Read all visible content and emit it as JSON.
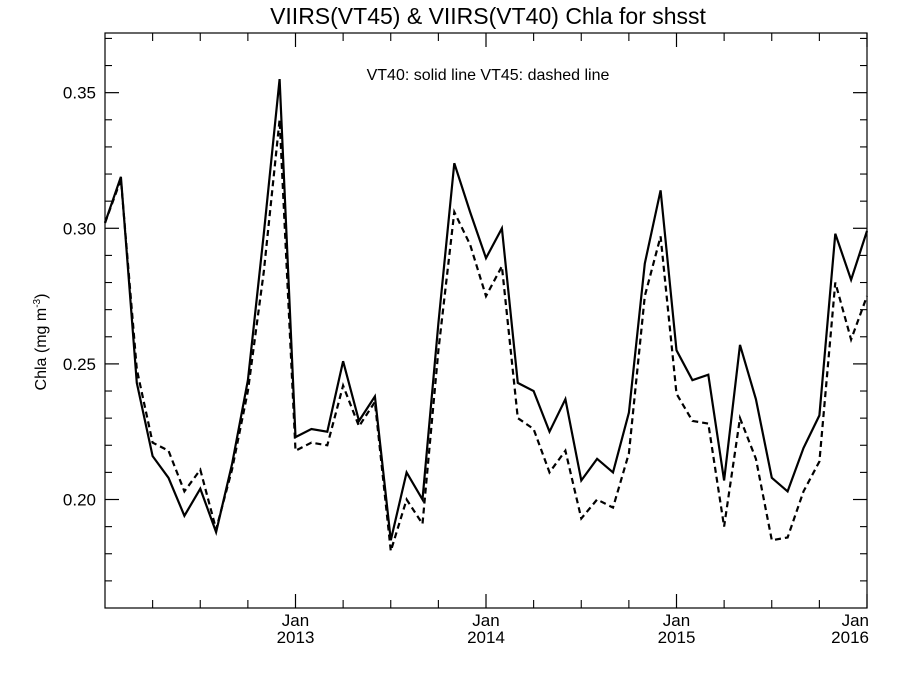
{
  "chart_data": {
    "type": "line",
    "title": "VIIRS(VT45) & VIIRS(VT40)  Chla for shsst",
    "annotation": "VT40: solid line   VT45: dashed line",
    "ylabel": {
      "prefix": "Chla (mg m",
      "superscript": "-3",
      "suffix": ")"
    },
    "xlabel": "",
    "xlim": [
      0,
      48
    ],
    "ylim": [
      0.16,
      0.372
    ],
    "grid": false,
    "legend": "none",
    "x_ticks": [
      {
        "x": 12,
        "month": "Jan",
        "year": "2013"
      },
      {
        "x": 24,
        "month": "Jan",
        "year": "2014"
      },
      {
        "x": 36,
        "month": "Jan",
        "year": "2015"
      },
      {
        "x": 48,
        "month": "Jan",
        "year": "2016"
      }
    ],
    "x_minor_ticks": [
      3,
      6,
      9,
      15,
      18,
      21,
      27,
      30,
      33,
      39,
      42,
      45
    ],
    "y_ticks": [
      0.2,
      0.25,
      0.3,
      0.35
    ],
    "y_tick_labels": [
      "0.20",
      "0.25",
      "0.30",
      "0.35"
    ],
    "y_minor_ticks": [
      0.17,
      0.18,
      0.19,
      0.21,
      0.22,
      0.23,
      0.24,
      0.26,
      0.27,
      0.28,
      0.29,
      0.31,
      0.32,
      0.33,
      0.34,
      0.36,
      0.37
    ],
    "series": [
      {
        "name": "VT40",
        "style": "solid",
        "color": "#000000",
        "x": [
          0,
          1,
          2,
          3,
          4,
          5,
          6,
          7,
          8,
          9,
          10,
          11,
          12,
          13,
          14,
          15,
          16,
          17,
          18,
          19,
          20,
          21,
          22,
          23,
          24,
          25,
          26,
          27,
          28,
          29,
          30,
          31,
          32,
          33,
          34,
          35,
          36,
          37,
          38,
          39,
          40,
          41,
          42,
          43,
          44,
          45,
          46,
          47,
          48
        ],
        "values": [
          0.302,
          0.319,
          0.243,
          0.216,
          0.208,
          0.194,
          0.204,
          0.188,
          0.213,
          0.244,
          0.298,
          0.355,
          0.223,
          0.226,
          0.225,
          0.251,
          0.229,
          0.238,
          0.185,
          0.21,
          0.2,
          0.265,
          0.324,
          0.306,
          0.289,
          0.3,
          0.243,
          0.24,
          0.225,
          0.237,
          0.207,
          0.215,
          0.21,
          0.232,
          0.287,
          0.314,
          0.255,
          0.244,
          0.246,
          0.207,
          0.257,
          0.237,
          0.208,
          0.203,
          0.219,
          0.231,
          0.298,
          0.281,
          0.299
        ]
      },
      {
        "name": "VT45",
        "style": "dashed",
        "color": "#000000",
        "x": [
          0,
          1,
          2,
          3,
          4,
          5,
          6,
          7,
          8,
          9,
          10,
          11,
          12,
          13,
          14,
          15,
          16,
          17,
          18,
          19,
          20,
          21,
          22,
          23,
          24,
          25,
          26,
          27,
          28,
          29,
          30,
          31,
          32,
          33,
          34,
          35,
          36,
          37,
          38,
          39,
          40,
          41,
          42,
          43,
          44,
          45,
          46,
          47,
          48
        ],
        "values": [
          0.302,
          0.318,
          0.248,
          0.221,
          0.218,
          0.203,
          0.211,
          0.189,
          0.211,
          0.24,
          0.284,
          0.34,
          0.218,
          0.221,
          0.22,
          0.242,
          0.227,
          0.236,
          0.181,
          0.2,
          0.191,
          0.255,
          0.306,
          0.294,
          0.275,
          0.286,
          0.23,
          0.226,
          0.21,
          0.218,
          0.193,
          0.2,
          0.197,
          0.217,
          0.275,
          0.297,
          0.239,
          0.229,
          0.228,
          0.19,
          0.23,
          0.215,
          0.185,
          0.186,
          0.203,
          0.214,
          0.28,
          0.259,
          0.275
        ]
      }
    ]
  }
}
